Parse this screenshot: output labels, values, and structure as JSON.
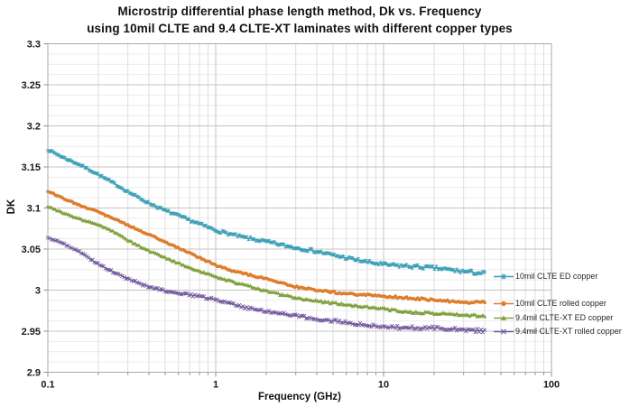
{
  "title": {
    "line1": "Microstrip differential phase length method, Dk vs. Frequency",
    "line2": "using 10mil CLTE and 9.4 CLTE-XT laminates with different copper types"
  },
  "chart_data": {
    "type": "line",
    "title": "Microstrip differential phase length method, Dk vs. Frequency using 10mil CLTE and 9.4 CLTE-XT laminates with different copper types",
    "xlabel": "Frequency (GHz)",
    "ylabel": "DK",
    "x_scale": "log",
    "xlim": [
      0.1,
      100
    ],
    "ylim": [
      2.9,
      3.3
    ],
    "x_tick_values": [
      0.1,
      1,
      10,
      100
    ],
    "x_tick_labels": [
      "0.1",
      "1",
      "10",
      "100"
    ],
    "y_major_step": 0.05,
    "y_tick_labels": [
      "3.3",
      "3.25",
      "3.2",
      "3.15",
      "3.1",
      "3.05",
      "3",
      "2.95",
      "2.9"
    ],
    "grid": "major and minor gridlines on, log minor verticals",
    "legend_position": "right, overlapping plot edge",
    "series": [
      {
        "name": "10mil CLTE ED copper",
        "color": "#3BA0B5",
        "marker": "asterisk",
        "points": [
          [
            0.1,
            3.171
          ],
          [
            0.125,
            3.16
          ],
          [
            0.16,
            3.15
          ],
          [
            0.2,
            3.14
          ],
          [
            0.25,
            3.13
          ],
          [
            0.3,
            3.121
          ],
          [
            0.4,
            3.107
          ],
          [
            0.5,
            3.097
          ],
          [
            0.7,
            3.084
          ],
          [
            1,
            3.072
          ],
          [
            1.4,
            3.066
          ],
          [
            2,
            3.06
          ],
          [
            3,
            3.051
          ],
          [
            4,
            3.046
          ],
          [
            5,
            3.042
          ],
          [
            7,
            3.037
          ],
          [
            10,
            3.032
          ],
          [
            14,
            3.029
          ],
          [
            20,
            3.026
          ],
          [
            28,
            3.023
          ],
          [
            40,
            3.021
          ]
        ]
      },
      {
        "name": "10mil CLTE rolled copper",
        "color": "#DE7E2D",
        "marker": "circle",
        "points": [
          [
            0.1,
            3.12
          ],
          [
            0.125,
            3.111
          ],
          [
            0.16,
            3.103
          ],
          [
            0.2,
            3.096
          ],
          [
            0.25,
            3.087
          ],
          [
            0.3,
            3.079
          ],
          [
            0.4,
            3.067
          ],
          [
            0.5,
            3.058
          ],
          [
            0.7,
            3.045
          ],
          [
            1,
            3.031
          ],
          [
            1.4,
            3.021
          ],
          [
            2,
            3.013
          ],
          [
            3,
            3.004
          ],
          [
            4,
            3.0
          ],
          [
            5,
            2.998
          ],
          [
            7,
            2.995
          ],
          [
            10,
            2.992
          ],
          [
            14,
            2.99
          ],
          [
            20,
            2.988
          ],
          [
            28,
            2.986
          ],
          [
            40,
            2.985
          ]
        ]
      },
      {
        "name": "9.4mil CLTE-XT ED copper",
        "color": "#81A13F",
        "marker": "triangle",
        "points": [
          [
            0.1,
            3.103
          ],
          [
            0.125,
            3.094
          ],
          [
            0.16,
            3.086
          ],
          [
            0.2,
            3.079
          ],
          [
            0.25,
            3.07
          ],
          [
            0.3,
            3.06
          ],
          [
            0.4,
            3.048
          ],
          [
            0.5,
            3.04
          ],
          [
            0.7,
            3.028
          ],
          [
            1,
            3.016
          ],
          [
            1.4,
            3.007
          ],
          [
            2,
            2.999
          ],
          [
            3,
            2.991
          ],
          [
            4,
            2.987
          ],
          [
            5,
            2.984
          ],
          [
            7,
            2.98
          ],
          [
            10,
            2.977
          ],
          [
            14,
            2.974
          ],
          [
            20,
            2.972
          ],
          [
            28,
            2.97
          ],
          [
            40,
            2.968
          ]
        ]
      },
      {
        "name": "9.4mil CLTE-XT rolled copper",
        "color": "#6F589B",
        "marker": "x",
        "points": [
          [
            0.1,
            3.064
          ],
          [
            0.125,
            3.055
          ],
          [
            0.16,
            3.043
          ],
          [
            0.2,
            3.031
          ],
          [
            0.25,
            3.022
          ],
          [
            0.3,
            3.015
          ],
          [
            0.4,
            3.005
          ],
          [
            0.5,
            2.999
          ],
          [
            0.7,
            2.993
          ],
          [
            1,
            2.988
          ],
          [
            1.4,
            2.981
          ],
          [
            2,
            2.975
          ],
          [
            3,
            2.968
          ],
          [
            4,
            2.964
          ],
          [
            5,
            2.962
          ],
          [
            7,
            2.959
          ],
          [
            10,
            2.956
          ],
          [
            14,
            2.954
          ],
          [
            20,
            2.953
          ],
          [
            28,
            2.952
          ],
          [
            40,
            2.951
          ]
        ]
      }
    ],
    "colors": {
      "grid_major": "#c4c4c4",
      "grid_minor_h": "#ececec",
      "grid_minor_v": "#dedede",
      "plot_border": "#a8a8a8",
      "tick": "#8f8f8f",
      "text": "#1a1a1a"
    }
  }
}
